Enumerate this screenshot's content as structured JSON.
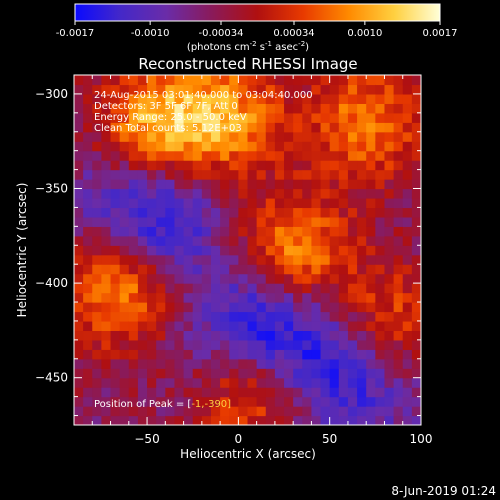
{
  "colors": {
    "background": "#000000",
    "foreground": "#ffffff",
    "colormap": [
      "#0a0aff",
      "#4428c8",
      "#6a2ca8",
      "#8a1a5a",
      "#b01010",
      "#e83a00",
      "#ff8a00",
      "#ffd040",
      "#ffffd8"
    ]
  },
  "colorbar": {
    "ticks": [
      "-0.0017",
      "-0.0010",
      "-0.00034",
      "0.00034",
      "0.0010",
      "0.0017"
    ],
    "values": [
      -0.0017,
      -0.001,
      -0.00034,
      0.00034,
      0.001,
      0.0017
    ],
    "range": [
      -0.0017,
      0.0017
    ],
    "unit_label": "(photons cm",
    "unit_sup1": "-2",
    "unit_mid": " s",
    "unit_sup2": "-1",
    "unit_mid2": " asec",
    "unit_sup3": "-2",
    "unit_end": ")"
  },
  "annotations": {
    "time": "24-Aug-2015 03:01:40.000 to 03:04:40.000",
    "detectors": "Detectors: 3F 5F 6F 7F, Att 0",
    "energy": "Energy Range: 25.0 - 50.0 keV",
    "clean": "Clean     Total counts: 5.12E+03",
    "peak": "Position of Peak = [",
    "peak_value": "-1,-390]",
    "date_stamp": "8-Jun-2019 01:24"
  },
  "chart_data": {
    "type": "heatmap",
    "title": "Reconstructed RHESSI Image",
    "xlabel": "Heliocentric X (arcsec)",
    "ylabel": "Heliocentric Y (arcsec)",
    "xlim": [
      -90,
      100
    ],
    "ylim": [
      -475,
      -290
    ],
    "x_ticks": [
      -50,
      0,
      50,
      100
    ],
    "y_ticks": [
      -300,
      -350,
      -400,
      -450
    ],
    "x_tick_labels": [
      "−50",
      "0",
      "50",
      "100"
    ],
    "y_tick_labels": [
      "−300",
      "−350",
      "−400",
      "−450"
    ],
    "bright_regions": [
      {
        "x": -45,
        "y": -318,
        "intensity": 0.95
      },
      {
        "x": -5,
        "y": -312,
        "intensity": 0.75
      },
      {
        "x": 70,
        "y": -315,
        "intensity": 0.7
      },
      {
        "x": 30,
        "y": -385,
        "intensity": 0.9
      },
      {
        "x": -65,
        "y": -400,
        "intensity": 0.95
      },
      {
        "x": 10,
        "y": -455,
        "intensity": 0.85
      },
      {
        "x": 80,
        "y": -420,
        "intensity": 0.6
      }
    ],
    "dim_regions": [
      {
        "x": -50,
        "y": -365,
        "intensity": -0.85
      },
      {
        "x": 15,
        "y": -425,
        "intensity": -0.95
      },
      {
        "x": 60,
        "y": -450,
        "intensity": -0.6
      }
    ]
  }
}
